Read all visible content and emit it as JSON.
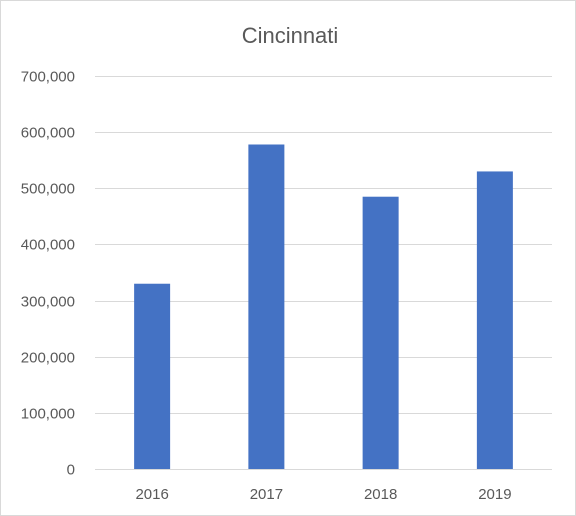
{
  "chart_data": {
    "type": "bar",
    "title": "Cincinnati",
    "categories": [
      "2016",
      "2017",
      "2018",
      "2019"
    ],
    "values": [
      330000,
      578000,
      485000,
      530000
    ],
    "xlabel": "",
    "ylabel": "",
    "ylim": [
      0,
      700000
    ],
    "yticks": [
      0,
      100000,
      200000,
      300000,
      400000,
      500000,
      600000,
      700000
    ],
    "ytick_labels": [
      "0",
      "100,000",
      "200,000",
      "300,000",
      "400,000",
      "500,000",
      "600,000",
      "700,000"
    ],
    "grid": true,
    "legend": "none",
    "bar_color": "#4472C4"
  }
}
